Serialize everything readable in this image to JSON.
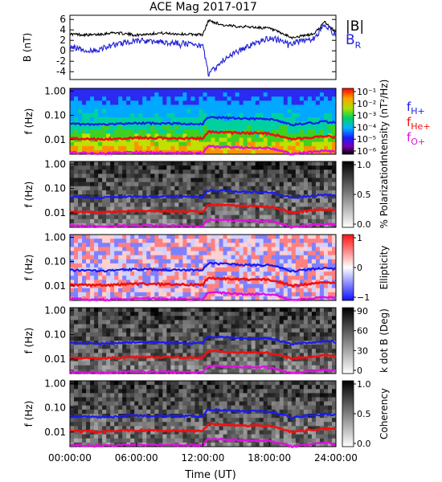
{
  "title": "ACE Mag 2017-017",
  "colors": {
    "B_total": "#000000",
    "B_R": "#1f1fd6",
    "f_H": "#1a1af0",
    "f_He": "#ee1111",
    "f_O": "#e010e0"
  },
  "chart_data": [
    {
      "type": "line",
      "panel": "magnetic-field",
      "ylabel": "B (nT)",
      "ylim": [
        -5.5,
        6.8
      ],
      "yticks": [
        "6",
        "4",
        "2",
        "0",
        "-2",
        "-4"
      ],
      "x": [
        "00:00",
        "02:00",
        "04:00",
        "06:00",
        "08:00",
        "10:00",
        "12:00",
        "12:30",
        "14:00",
        "16:00",
        "18:00",
        "20:00",
        "22:00",
        "23:00",
        "24:00"
      ],
      "series": [
        {
          "name": "|B|",
          "values": [
            3.2,
            3.0,
            3.5,
            3.0,
            3.4,
            3.2,
            3.1,
            5.8,
            4.8,
            4.6,
            4.3,
            2.5,
            3.2,
            5.5,
            3.5
          ]
        },
        {
          "name": "B",
          "subscript": "R",
          "values": [
            0.8,
            -0.1,
            1.1,
            2.0,
            1.6,
            1.5,
            0.9,
            -4.5,
            -1.5,
            0.8,
            2.5,
            1.5,
            2.3,
            5.0,
            3.0
          ]
        }
      ]
    },
    {
      "type": "heatmap",
      "panel": "intensity",
      "ylabel": "f (Hz)",
      "yticks": [
        "1.00",
        "0.10",
        "0.01"
      ],
      "colorbar_label": "Intensity (nT²/Hz)",
      "colorbar_ticks": [
        "10⁻¹",
        "10⁻²",
        "10⁻³",
        "10⁻⁴",
        "10⁻⁵",
        "10⁻⁶"
      ],
      "legend": [
        {
          "label": "f",
          "subscript": "H+"
        },
        {
          "label": "f",
          "subscript": "He+"
        },
        {
          "label": "f",
          "subscript": "O+"
        }
      ]
    },
    {
      "type": "heatmap",
      "panel": "polarization",
      "ylabel": "f (Hz)",
      "yticks": [
        "1.00",
        "0.10",
        "0.01"
      ],
      "colorbar_label": "% Polarization",
      "colorbar_ticks": [
        "1.0",
        "0.5",
        "0.0"
      ]
    },
    {
      "type": "heatmap",
      "panel": "ellipticity",
      "ylabel": "f (Hz)",
      "yticks": [
        "1.00",
        "0.10",
        "0.01"
      ],
      "colorbar_label": "Ellipticity",
      "colorbar_ticks": [
        "1",
        "0",
        "−1"
      ]
    },
    {
      "type": "heatmap",
      "panel": "k-dot-b",
      "ylabel": "f (Hz)",
      "yticks": [
        "1.00",
        "0.10",
        "0.01"
      ],
      "colorbar_label": "k dot B (Deg)",
      "colorbar_ticks": [
        "90",
        "60",
        "30",
        "0"
      ]
    },
    {
      "type": "heatmap",
      "panel": "coherency",
      "ylabel": "f (Hz)",
      "yticks": [
        "1.00",
        "0.10",
        "0.01"
      ],
      "colorbar_label": "Coherency",
      "colorbar_ticks": [
        "1.0",
        "0.5",
        "0.0"
      ],
      "xlabel": "Time (UT)",
      "xticks": [
        "00:00:00",
        "06:00:00",
        "12:00:00",
        "18:00:00",
        "24:00:00"
      ]
    }
  ],
  "gyrofrequency_lines": {
    "x": [
      "00:00",
      "03:00",
      "06:00",
      "09:00",
      "12:00",
      "12:30",
      "15:00",
      "18:00",
      "20:00",
      "23:00",
      "24:00"
    ],
    "f_H": [
      0.045,
      0.042,
      0.048,
      0.046,
      0.045,
      0.085,
      0.075,
      0.07,
      0.04,
      0.055,
      0.05
    ],
    "f_He": [
      0.011,
      0.0105,
      0.012,
      0.0115,
      0.011,
      0.021,
      0.019,
      0.018,
      0.01,
      0.014,
      0.0125
    ],
    "f_O": [
      0.0029,
      0.0027,
      0.003,
      0.0029,
      0.0028,
      0.0053,
      0.0047,
      0.0045,
      0.0025,
      0.0035,
      0.0031
    ]
  }
}
